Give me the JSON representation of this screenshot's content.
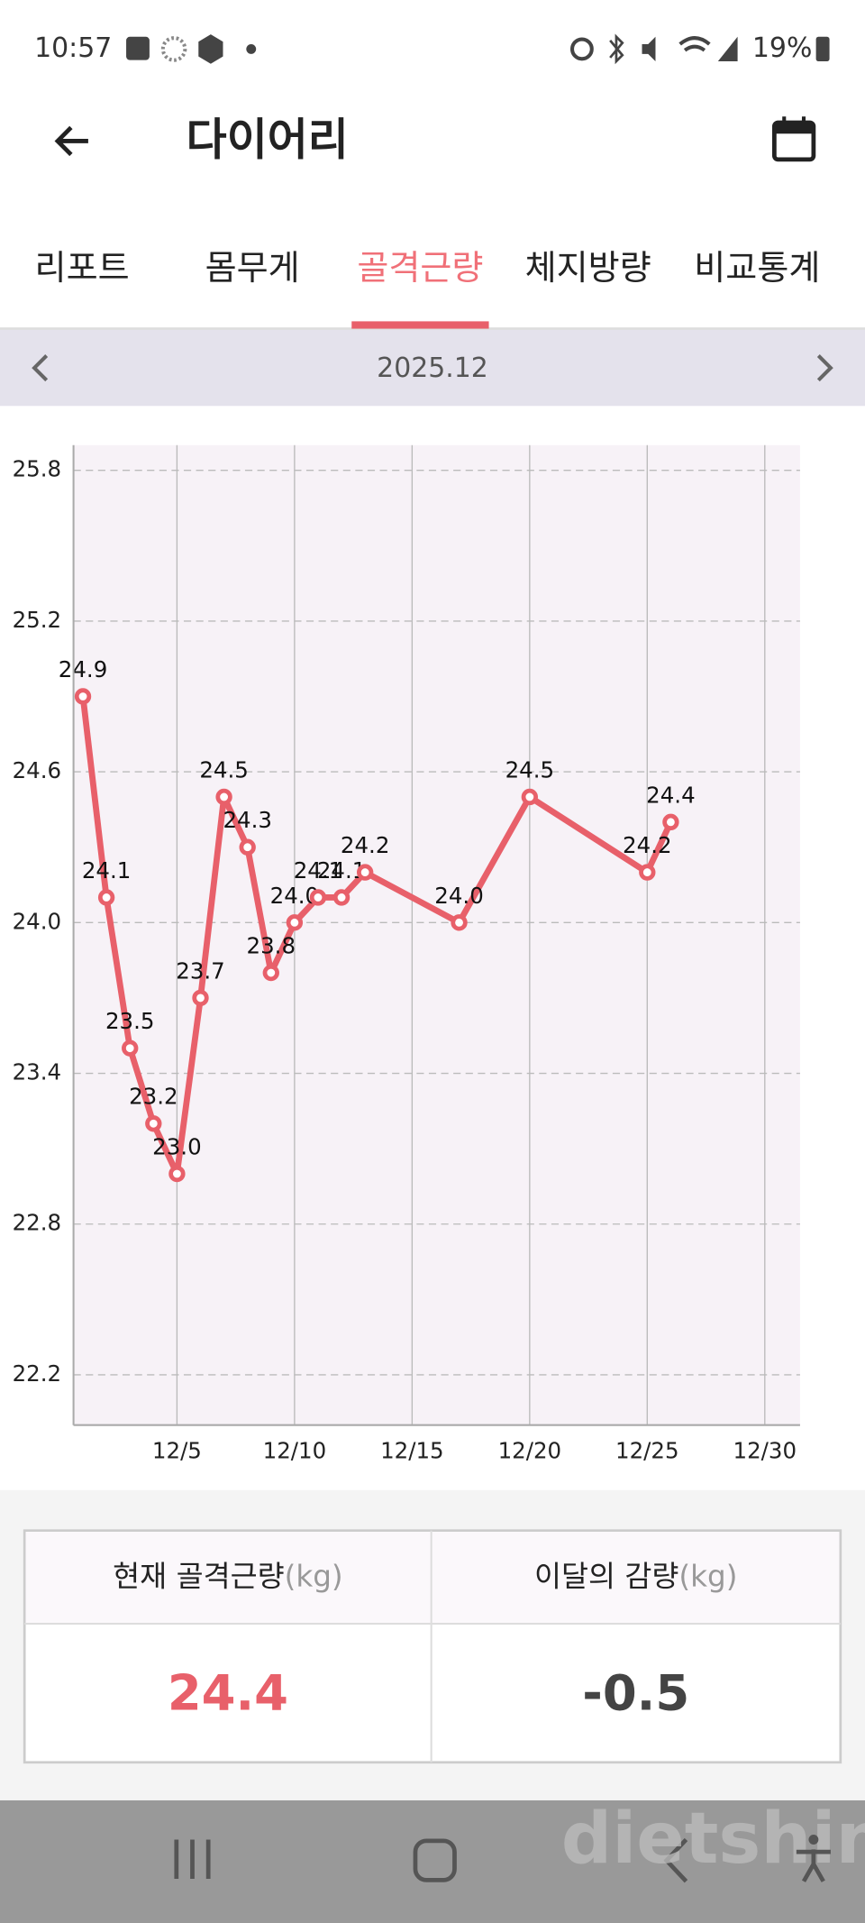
{
  "status_bar": {
    "time": "10:57",
    "battery": "19%"
  },
  "header": {
    "title": "다이어리"
  },
  "tabs": [
    "리포트",
    "몸무게",
    "골격근량",
    "체지방량",
    "비교통계"
  ],
  "month": "2025.12",
  "chart_data": {
    "type": "line",
    "color": "#e8606a",
    "x": [
      1,
      2,
      3,
      4,
      5,
      6,
      7,
      8,
      9,
      10,
      11,
      12,
      13,
      17,
      20,
      25,
      26
    ],
    "values": [
      24.9,
      24.1,
      23.5,
      23.2,
      23.0,
      23.7,
      24.5,
      24.3,
      23.8,
      24.0,
      24.1,
      24.1,
      24.2,
      24.0,
      24.5,
      24.2,
      24.4
    ],
    "value_labels": [
      "24.9",
      "24.1",
      "23.5",
      "23.2",
      "23.0",
      "23.7",
      "24.5",
      "24.3",
      "23.8",
      "24.0",
      "24.1",
      "24.1",
      "24.2",
      "24.0",
      "24.5",
      "24.2",
      "24.4"
    ],
    "xlim": [
      0.6,
      31.5
    ],
    "xticks": [
      {
        "value": 5,
        "label": "12/5"
      },
      {
        "value": 10,
        "label": "12/10"
      },
      {
        "value": 15,
        "label": "12/15"
      },
      {
        "value": 20,
        "label": "12/20"
      },
      {
        "value": 25,
        "label": "12/25"
      },
      {
        "value": 30,
        "label": "12/30"
      }
    ],
    "ylim": [
      22.0,
      25.9
    ],
    "yticks": [
      22.2,
      22.8,
      23.4,
      {
        "value": 24,
        "label": "24.0"
      },
      24.6,
      25.2,
      25.8
    ],
    "grid": true
  },
  "summary": {
    "headers": [
      {
        "label": "현재 골격근량",
        "unit": "(kg)"
      },
      {
        "label": "이달의 감량",
        "unit": "(kg)"
      }
    ],
    "values": [
      "24.4",
      "-0.5"
    ]
  },
  "watermark": "dietshin.com"
}
